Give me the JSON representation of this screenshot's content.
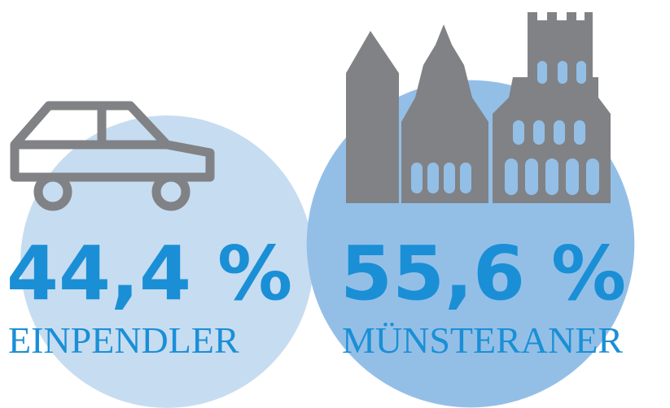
{
  "chart_data": {
    "type": "bubble",
    "categories": [
      "EINPENDLER",
      "MÜNSTERANER"
    ],
    "values": [
      44.4,
      55.6
    ],
    "value_labels": [
      "44,4 %",
      "55,6 %"
    ],
    "colors": [
      "#c6dcf1",
      "#93bfe7"
    ],
    "label_color": "#1a8fd6"
  }
}
